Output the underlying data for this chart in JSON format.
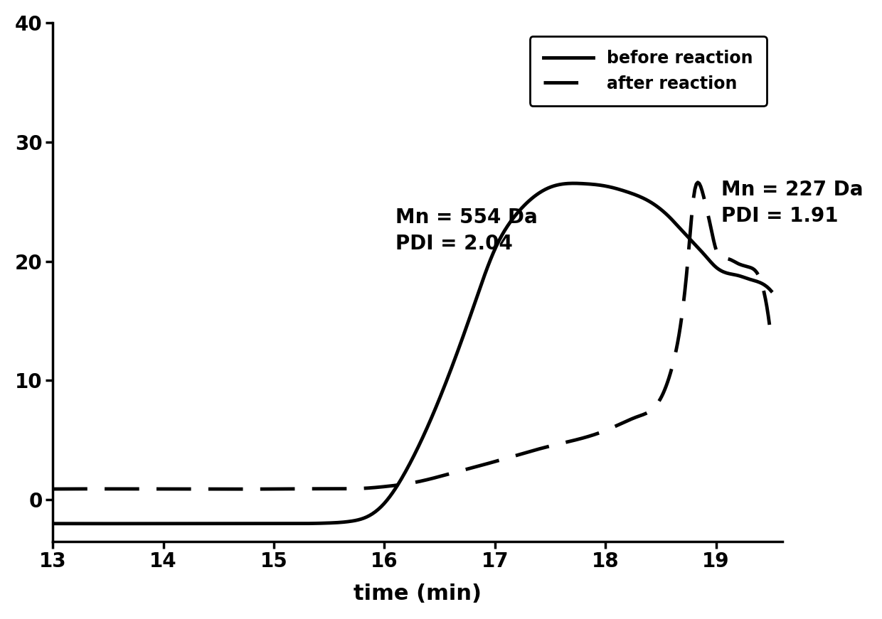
{
  "title": "",
  "xlabel": "time (min)",
  "ylabel": "",
  "xlim": [
    13,
    19.6
  ],
  "ylim": [
    -3.5,
    40
  ],
  "xticks": [
    13,
    14,
    15,
    16,
    17,
    18,
    19
  ],
  "yticks": [
    0,
    10,
    20,
    30,
    40
  ],
  "background_color": "#ffffff",
  "line_color": "#000000",
  "annotation1": "Mn = 554 Da\nPDI = 2.04",
  "annotation2": "Mn = 227 Da\nPDI = 1.91",
  "legend_before": "before reaction",
  "legend_after": "after reaction",
  "before_kp_x": [
    13.0,
    14.0,
    15.0,
    15.5,
    15.7,
    15.85,
    16.0,
    16.2,
    16.5,
    16.8,
    17.0,
    17.2,
    17.5,
    17.8,
    18.0,
    18.2,
    18.4,
    18.6,
    18.65,
    18.7,
    18.8,
    18.9,
    19.0,
    19.1,
    19.2,
    19.3,
    19.4,
    19.5
  ],
  "before_kp_y": [
    -2.0,
    -2.0,
    -2.0,
    -1.95,
    -1.8,
    -1.4,
    -0.3,
    2.5,
    8.5,
    16.0,
    21.0,
    24.0,
    26.2,
    26.5,
    26.3,
    25.8,
    25.0,
    23.5,
    23.0,
    22.5,
    21.5,
    20.5,
    19.5,
    19.0,
    18.8,
    18.5,
    18.2,
    17.5
  ],
  "after_kp_x": [
    13.0,
    14.0,
    15.0,
    15.5,
    15.8,
    16.0,
    16.3,
    16.6,
    17.0,
    17.5,
    18.0,
    18.3,
    18.5,
    18.6,
    18.7,
    18.75,
    18.8,
    18.85,
    18.9,
    18.95,
    19.0,
    19.1,
    19.2,
    19.3,
    19.4,
    19.5
  ],
  "after_kp_y": [
    0.9,
    0.9,
    0.9,
    0.92,
    0.95,
    1.1,
    1.5,
    2.2,
    3.2,
    4.5,
    5.8,
    7.0,
    8.5,
    11.0,
    16.0,
    20.5,
    25.5,
    26.5,
    25.0,
    23.0,
    21.0,
    20.2,
    19.8,
    19.5,
    18.5,
    13.5
  ]
}
